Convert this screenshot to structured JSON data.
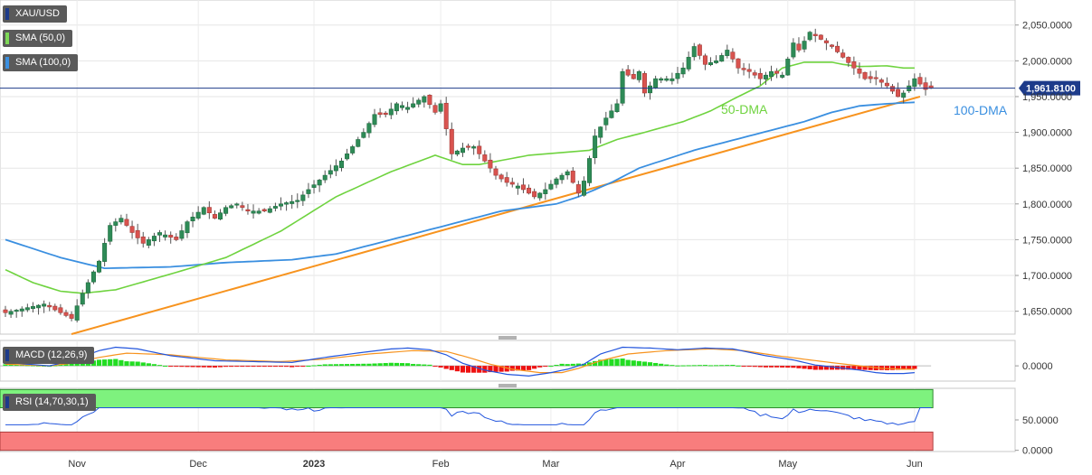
{
  "chart_data": {
    "type": "candlestick",
    "symbol": "XAU/USD",
    "indicator_labels": [
      "SMA (50,0)",
      "SMA (100,0)"
    ],
    "annotations": [
      "50-DMA",
      "100-DMA"
    ],
    "current_price_label": "1,961.8100",
    "current_price": 1961.81,
    "price_ylim": [
      1618,
      2085
    ],
    "price_ticks": [
      {
        "v": 2050,
        "label": "2,050.0000"
      },
      {
        "v": 2000,
        "label": "2,000.0000"
      },
      {
        "v": 1950,
        "label": "1,950.0000"
      },
      {
        "v": 1900,
        "label": "1,900.0000"
      },
      {
        "v": 1850,
        "label": "1,850.0000"
      },
      {
        "v": 1800,
        "label": "1,800.0000"
      },
      {
        "v": 1750,
        "label": "1,750.0000"
      },
      {
        "v": 1700,
        "label": "1,700.0000"
      },
      {
        "v": 1650,
        "label": "1,650.0000"
      }
    ],
    "x_ticks": [
      {
        "label": "Nov",
        "i": 13,
        "bold": false
      },
      {
        "label": "Dec",
        "i": 35,
        "bold": false
      },
      {
        "label": "2023",
        "i": 56,
        "bold": true
      },
      {
        "label": "Feb",
        "i": 79,
        "bold": false
      },
      {
        "label": "Mar",
        "i": 99,
        "bold": false
      },
      {
        "label": "Apr",
        "i": 122,
        "bold": false
      },
      {
        "label": "May",
        "i": 142,
        "bold": false
      },
      {
        "label": "Jun",
        "i": 165,
        "bold": false
      }
    ],
    "close_anchors": [
      [
        0,
        1648
      ],
      [
        4,
        1655
      ],
      [
        7,
        1660
      ],
      [
        10,
        1648
      ],
      [
        12,
        1640
      ],
      [
        14,
        1675
      ],
      [
        17,
        1720
      ],
      [
        19,
        1770
      ],
      [
        21,
        1780
      ],
      [
        23,
        1760
      ],
      [
        25,
        1745
      ],
      [
        28,
        1760
      ],
      [
        31,
        1750
      ],
      [
        33,
        1775
      ],
      [
        36,
        1795
      ],
      [
        38,
        1780
      ],
      [
        40,
        1795
      ],
      [
        42,
        1800
      ],
      [
        44,
        1790
      ],
      [
        47,
        1790
      ],
      [
        50,
        1800
      ],
      [
        53,
        1805
      ],
      [
        55,
        1820
      ],
      [
        58,
        1840
      ],
      [
        61,
        1860
      ],
      [
        63,
        1880
      ],
      [
        65,
        1900
      ],
      [
        67,
        1925
      ],
      [
        69,
        1925
      ],
      [
        71,
        1940
      ],
      [
        73,
        1935
      ],
      [
        76,
        1950
      ],
      [
        78,
        1928
      ],
      [
        79,
        1940
      ],
      [
        81,
        1870
      ],
      [
        83,
        1878
      ],
      [
        85,
        1880
      ],
      [
        87,
        1860
      ],
      [
        89,
        1840
      ],
      [
        91,
        1830
      ],
      [
        93,
        1825
      ],
      [
        96,
        1810
      ],
      [
        98,
        1820
      ],
      [
        100,
        1835
      ],
      [
        102,
        1845
      ],
      [
        104,
        1815
      ],
      [
        105,
        1832
      ],
      [
        107,
        1895
      ],
      [
        109,
        1920
      ],
      [
        111,
        1940
      ],
      [
        112,
        1985
      ],
      [
        114,
        1975
      ],
      [
        115,
        1985
      ],
      [
        116,
        1955
      ],
      [
        118,
        1975
      ],
      [
        121,
        1975
      ],
      [
        123,
        1990
      ],
      [
        125,
        2020
      ],
      [
        127,
        1995
      ],
      [
        129,
        2000
      ],
      [
        131,
        2015
      ],
      [
        133,
        1990
      ],
      [
        135,
        1985
      ],
      [
        137,
        1975
      ],
      [
        139,
        1985
      ],
      [
        141,
        1980
      ],
      [
        143,
        2025
      ],
      [
        144,
        2015
      ],
      [
        146,
        2040
      ],
      [
        148,
        2030
      ],
      [
        150,
        2020
      ],
      [
        152,
        2005
      ],
      [
        154,
        1990
      ],
      [
        156,
        1975
      ],
      [
        158,
        1975
      ],
      [
        160,
        1965
      ],
      [
        162,
        1950
      ],
      [
        163,
        1955
      ],
      [
        165,
        1975
      ],
      [
        167,
        1960
      ],
      [
        168,
        1962
      ]
    ],
    "sma50_anchors": [
      [
        0,
        1708
      ],
      [
        5,
        1690
      ],
      [
        10,
        1678
      ],
      [
        14,
        1675
      ],
      [
        20,
        1680
      ],
      [
        30,
        1702
      ],
      [
        40,
        1725
      ],
      [
        50,
        1762
      ],
      [
        60,
        1810
      ],
      [
        70,
        1845
      ],
      [
        78,
        1868
      ],
      [
        83,
        1855
      ],
      [
        86,
        1855
      ],
      [
        95,
        1868
      ],
      [
        106,
        1875
      ],
      [
        111,
        1890
      ],
      [
        116,
        1900
      ],
      [
        123,
        1915
      ],
      [
        128,
        1930
      ],
      [
        133,
        1950
      ],
      [
        137,
        1965
      ],
      [
        141,
        1990
      ],
      [
        145,
        1998
      ],
      [
        150,
        1998
      ],
      [
        152,
        1995
      ],
      [
        155,
        1992
      ],
      [
        160,
        1993
      ],
      [
        163,
        1990
      ],
      [
        165,
        1990
      ]
    ],
    "sma100_anchors": [
      [
        0,
        1750
      ],
      [
        10,
        1725
      ],
      [
        18,
        1710
      ],
      [
        30,
        1712
      ],
      [
        40,
        1718
      ],
      [
        52,
        1722
      ],
      [
        60,
        1730
      ],
      [
        70,
        1750
      ],
      [
        80,
        1770
      ],
      [
        90,
        1790
      ],
      [
        100,
        1800
      ],
      [
        104,
        1810
      ],
      [
        110,
        1830
      ],
      [
        115,
        1850
      ],
      [
        125,
        1875
      ],
      [
        135,
        1895
      ],
      [
        145,
        1915
      ],
      [
        150,
        1928
      ],
      [
        155,
        1937
      ],
      [
        160,
        1940
      ],
      [
        165,
        1942
      ]
    ],
    "trendline": [
      [
        11,
        1618
      ],
      [
        166,
        1950
      ]
    ],
    "macd": {
      "label": "MACD (12,26,9)",
      "tick_label": "0.0000",
      "ylim": [
        -18,
        30
      ],
      "macd_anchors": [
        [
          0,
          4
        ],
        [
          8,
          0
        ],
        [
          12,
          6
        ],
        [
          17,
          18
        ],
        [
          20,
          22
        ],
        [
          24,
          20
        ],
        [
          30,
          12
        ],
        [
          38,
          6
        ],
        [
          45,
          5
        ],
        [
          52,
          4
        ],
        [
          58,
          10
        ],
        [
          65,
          16
        ],
        [
          70,
          20
        ],
        [
          73,
          21
        ],
        [
          77,
          19
        ],
        [
          80,
          13
        ],
        [
          83,
          3
        ],
        [
          87,
          -5
        ],
        [
          91,
          -10
        ],
        [
          95,
          -12
        ],
        [
          99,
          -8
        ],
        [
          102,
          -4
        ],
        [
          105,
          2
        ],
        [
          108,
          14
        ],
        [
          112,
          22
        ],
        [
          117,
          21
        ],
        [
          122,
          19
        ],
        [
          127,
          21
        ],
        [
          132,
          20
        ],
        [
          138,
          12
        ],
        [
          143,
          7
        ],
        [
          147,
          1
        ],
        [
          151,
          -2
        ],
        [
          155,
          -5
        ],
        [
          158,
          -8
        ],
        [
          160,
          -9
        ],
        [
          163,
          -9
        ],
        [
          165,
          -8
        ]
      ],
      "signal_anchors": [
        [
          0,
          2
        ],
        [
          8,
          0
        ],
        [
          12,
          3
        ],
        [
          17,
          10
        ],
        [
          22,
          15
        ],
        [
          30,
          13
        ],
        [
          40,
          7
        ],
        [
          50,
          5
        ],
        [
          58,
          8
        ],
        [
          66,
          14
        ],
        [
          74,
          18
        ],
        [
          80,
          17
        ],
        [
          84,
          10
        ],
        [
          88,
          2
        ],
        [
          92,
          -4
        ],
        [
          97,
          -8
        ],
        [
          101,
          -8
        ],
        [
          104,
          -3
        ],
        [
          108,
          6
        ],
        [
          113,
          14
        ],
        [
          120,
          18
        ],
        [
          128,
          20
        ],
        [
          134,
          18
        ],
        [
          140,
          12
        ],
        [
          146,
          7
        ],
        [
          151,
          3
        ],
        [
          155,
          0
        ],
        [
          159,
          -3
        ],
        [
          163,
          -4
        ],
        [
          165,
          -4
        ]
      ]
    },
    "rsi": {
      "label": "RSI (14,70,30,1)",
      "ticks": [
        {
          "v": 50,
          "label": "50.0000"
        },
        {
          "v": 0,
          "label": "0.0000"
        }
      ],
      "ylim": [
        -2,
        102
      ],
      "overbought": 70,
      "oversold": 30
    }
  }
}
